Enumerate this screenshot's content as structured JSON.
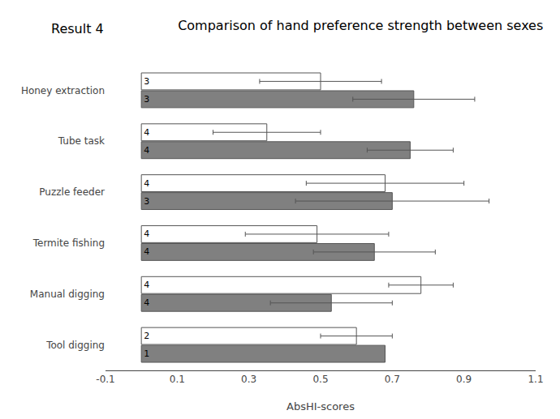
{
  "chart_data": {
    "type": "bar",
    "orientation": "horizontal",
    "title": "Comparison of hand preference strength between sexes",
    "annotations": [
      "Result 4"
    ],
    "xlabel": "AbsHI-scores",
    "categories": [
      "Honey extraction",
      "Tube task",
      "Puzzle feeder",
      "Termite fishing",
      "Manual digging",
      "Tool digging"
    ],
    "series": [
      {
        "color": "#ffffff",
        "values": [
          0.5,
          0.35,
          0.68,
          0.49,
          0.78,
          0.6
        ],
        "errors": [
          0.17,
          0.15,
          0.22,
          0.2,
          0.09,
          0.1
        ],
        "n": [
          3,
          4,
          4,
          4,
          4,
          2
        ]
      },
      {
        "color": "#808080",
        "values": [
          0.76,
          0.75,
          0.7,
          0.65,
          0.53,
          0.68
        ],
        "errors": [
          0.17,
          0.12,
          0.27,
          0.17,
          0.17,
          0.0
        ],
        "n": [
          3,
          4,
          3,
          4,
          4,
          1
        ]
      }
    ],
    "xlim": [
      -0.1,
      1.1
    ],
    "xticks": [
      -0.1,
      0.1,
      0.3,
      0.5,
      0.7,
      0.9,
      1.1
    ],
    "grid": false
  }
}
